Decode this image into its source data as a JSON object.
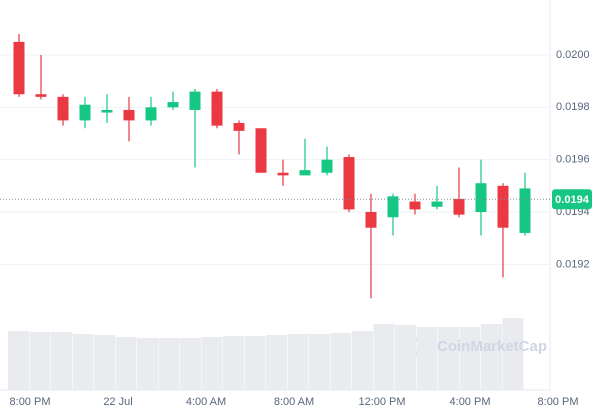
{
  "chart_data": {
    "type": "candlestick",
    "ylim": [
      0.01872,
      0.02021
    ],
    "yticks": [
      {
        "value": 0.02,
        "label": "0.0200"
      },
      0.0198,
      0.0196,
      0.0194,
      0.0192
    ],
    "x_labels": [
      "8:00 PM",
      "22 Jul",
      "4:00 AM",
      "8:00 AM",
      "12:00 PM",
      "4:00 PM",
      "8:00 PM"
    ],
    "up_color": "#16c784",
    "down_color": "#ea3943",
    "open": [
      0.02005,
      0.01985,
      0.01984,
      0.01975,
      0.01978,
      0.01979,
      0.01975,
      0.0198,
      0.01979,
      0.01986,
      0.01974,
      0.01972,
      0.01955,
      0.01954,
      0.01955,
      0.01961,
      0.0194,
      0.01938,
      0.01944,
      0.01942,
      0.01945,
      0.0194,
      0.0195,
      0.01932
    ],
    "high": [
      0.02008,
      0.02,
      0.01985,
      0.01984,
      0.01985,
      0.01984,
      0.01984,
      0.01986,
      0.01987,
      0.01987,
      0.01975,
      0.01972,
      0.0196,
      0.01968,
      0.01965,
      0.01962,
      0.01947,
      0.01947,
      0.01947,
      0.0195,
      0.01957,
      0.0196,
      0.01951,
      0.01955
    ],
    "low": [
      0.01984,
      0.01983,
      0.01973,
      0.01972,
      0.01974,
      0.01967,
      0.01973,
      0.01979,
      0.01957,
      0.01972,
      0.01962,
      0.01955,
      0.0195,
      0.01954,
      0.01954,
      0.0194,
      0.01907,
      0.01931,
      0.01939,
      0.01941,
      0.01938,
      0.01931,
      0.01915,
      0.01931
    ],
    "close": [
      0.01985,
      0.01984,
      0.01975,
      0.01981,
      0.01979,
      0.01975,
      0.0198,
      0.01982,
      0.01986,
      0.01973,
      0.01971,
      0.01955,
      0.01954,
      0.01956,
      0.0196,
      0.01941,
      0.01934,
      0.01946,
      0.01941,
      0.01944,
      0.01939,
      0.01951,
      0.01934,
      0.01949
    ],
    "volume": [
      59,
      58,
      58,
      56,
      55,
      53,
      52,
      52,
      52,
      53,
      54,
      54,
      55,
      56,
      56,
      57,
      59,
      66,
      65,
      63,
      63,
      63,
      66,
      72
    ],
    "current_price": {
      "value": 0.019449,
      "label": "0.0194"
    },
    "watermark": "CoinMarketCap"
  }
}
